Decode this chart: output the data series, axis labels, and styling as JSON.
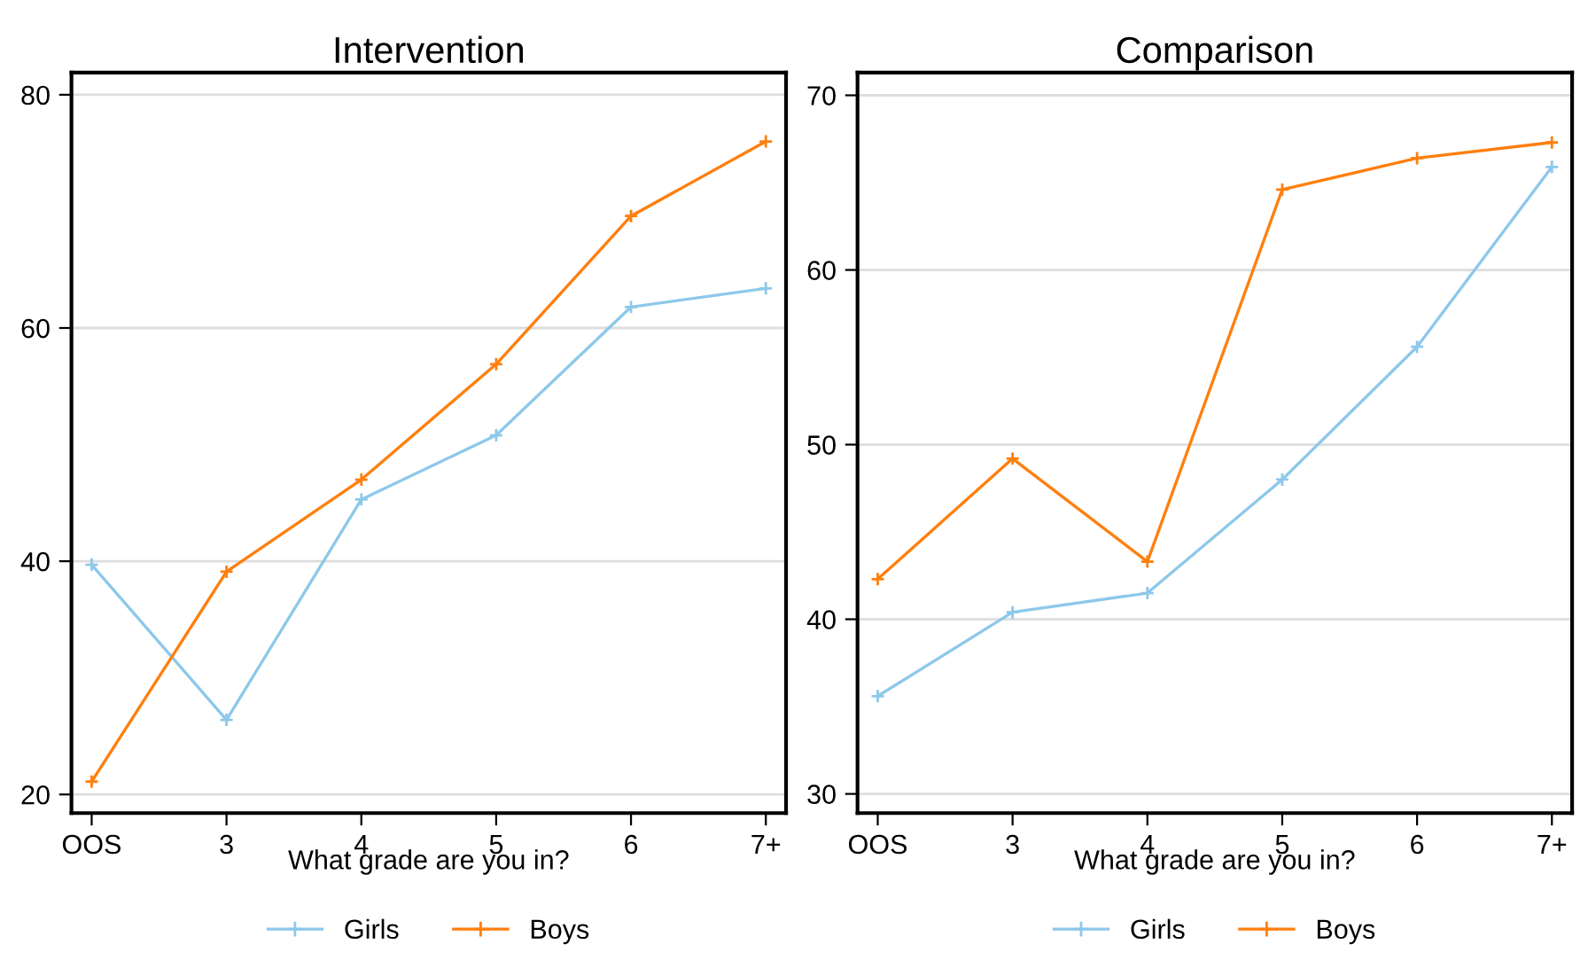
{
  "chart_data": [
    {
      "type": "line",
      "title": "Intervention",
      "xlabel": "What grade are you in?",
      "categories": [
        "OOS",
        "3",
        "4",
        "5",
        "6",
        "7+"
      ],
      "ylim": [
        18.4,
        81.9
      ],
      "yticks": [
        20,
        40,
        60,
        80
      ],
      "grid": "y",
      "legend": "bottom",
      "marker": "cross",
      "line_style": "solid",
      "series": [
        {
          "name": "Girls",
          "color": "#8dc8ea",
          "values": [
            39.7,
            26.4,
            45.3,
            50.8,
            61.8,
            63.4
          ]
        },
        {
          "name": "Boys",
          "color": "#ff7f0e",
          "values": [
            21.1,
            39.1,
            47.0,
            56.9,
            69.6,
            76.0
          ]
        }
      ]
    },
    {
      "type": "line",
      "title": "Comparison",
      "xlabel": "What grade are you in?",
      "categories": [
        "OOS",
        "3",
        "4",
        "5",
        "6",
        "7+"
      ],
      "ylim": [
        28.9,
        71.3
      ],
      "yticks": [
        30,
        40,
        50,
        60,
        70
      ],
      "grid": "y",
      "legend": "bottom",
      "marker": "cross",
      "line_style": "solid",
      "series": [
        {
          "name": "Girls",
          "color": "#8dc8ea",
          "values": [
            35.6,
            40.4,
            41.5,
            48.0,
            55.6,
            65.9
          ]
        },
        {
          "name": "Boys",
          "color": "#ff7f0e",
          "values": [
            42.3,
            49.2,
            43.3,
            64.6,
            66.4,
            67.3
          ]
        }
      ]
    }
  ]
}
